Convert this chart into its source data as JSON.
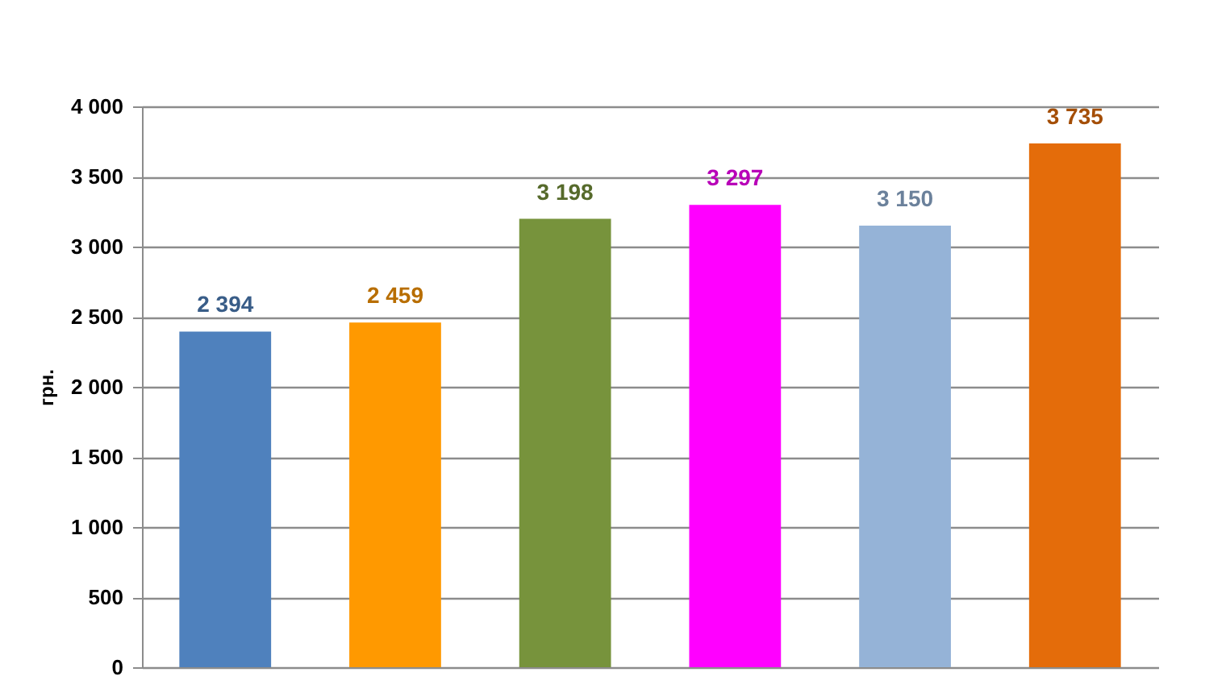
{
  "chart_data": {
    "type": "bar",
    "ylabel": "грн.",
    "categories": [
      null,
      null,
      null,
      null,
      null,
      null
    ],
    "values": [
      2394,
      2459,
      3198,
      3297,
      3150,
      3735
    ],
    "colors": [
      "#4f81bd",
      "#ff9900",
      "#77933c",
      "#ff00ff",
      "#95b3d7",
      "#e46c0a"
    ],
    "ylim": [
      0,
      4000
    ],
    "yticks": [
      0,
      500,
      1000,
      1500,
      2000,
      2500,
      3000,
      3500,
      4000
    ],
    "grid": "y",
    "data_labels": true,
    "tick_labels": "y"
  }
}
